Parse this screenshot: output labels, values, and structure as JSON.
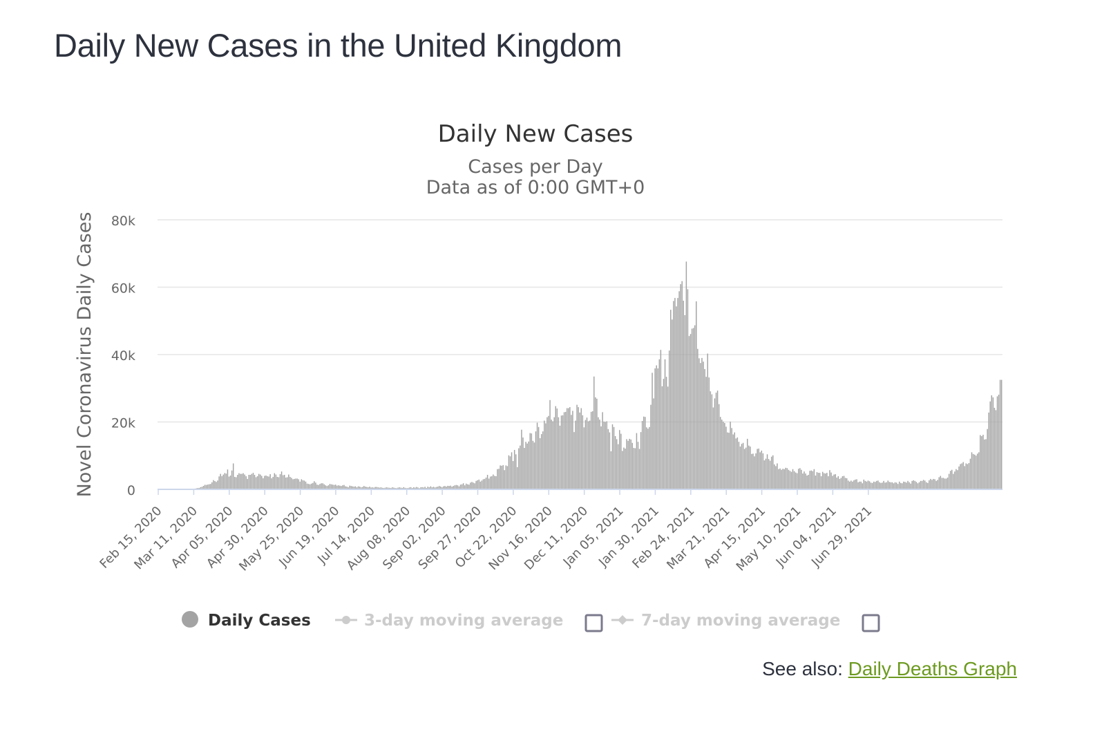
{
  "page": {
    "title": "Daily New Cases in the United Kingdom",
    "see_also_label": "See also:",
    "see_also_link": "Daily Deaths Graph"
  },
  "colors": {
    "bar": "#a3a3a3",
    "grid": "#e6e6e6",
    "axis": "#ccd6eb",
    "link": "#6c9a1f",
    "legend_inactive": "#cccccc",
    "text": "#333333"
  },
  "chart_data": {
    "type": "bar",
    "title": "Daily New Cases",
    "subtitle_lines": [
      "Cases per Day",
      "Data as of 0:00 GMT+0"
    ],
    "ylabel": "Novel Coronavirus Daily Cases",
    "xlabel": "",
    "ylim": [
      0,
      80000
    ],
    "y_ticks": [
      0,
      20000,
      40000,
      60000,
      80000
    ],
    "y_tick_labels": [
      "0",
      "20k",
      "40k",
      "60k",
      "80k"
    ],
    "x_start": "2020-02-15",
    "x_end": "2021-07-22",
    "x_tick_labels": [
      "Feb 15, 2020",
      "Mar 11, 2020",
      "Apr 05, 2020",
      "Apr 30, 2020",
      "May 25, 2020",
      "Jun 19, 2020",
      "Jul 14, 2020",
      "Aug 08, 2020",
      "Sep 02, 2020",
      "Sep 27, 2020",
      "Oct 22, 2020",
      "Nov 16, 2020",
      "Dec 11, 2020",
      "Jan 05, 2021",
      "Jan 30, 2021",
      "Feb 24, 2021",
      "Mar 21, 2021",
      "Apr 15, 2021",
      "May 10, 2021",
      "Jun 04, 2021",
      "Jun 29, 2021"
    ],
    "grid": true,
    "legend_position": "bottom-center",
    "legend": [
      {
        "label": "Daily Cases",
        "active": true,
        "symbol": "circle"
      },
      {
        "label": "3-day moving average",
        "active": false,
        "symbol": "line-circle"
      },
      {
        "label": "7-day moving average",
        "active": false,
        "symbol": "line-diamond"
      }
    ],
    "series": [
      {
        "name": "Daily Cases",
        "values": [
          1,
          0,
          0,
          0,
          0,
          0,
          0,
          3,
          4,
          0,
          1,
          5,
          10,
          13,
          35,
          22,
          46,
          43,
          53,
          40,
          140,
          60,
          70,
          78,
          100,
          150,
          230,
          308,
          410,
          420,
          650,
          760,
          1030,
          1340,
          1310,
          1420,
          1520,
          1600,
          2090,
          2740,
          2470,
          2200,
          2620,
          3840,
          4600,
          3930,
          4390,
          4840,
          4670,
          5900,
          3800,
          4100,
          5600,
          7700,
          3700,
          3600,
          4300,
          4800,
          4600,
          4600,
          4800,
          4400,
          3900,
          3100,
          4300,
          4300,
          4600,
          4900,
          4300,
          3600,
          3900,
          4600,
          4400,
          4000,
          3300,
          4000,
          4100,
          3900,
          3800,
          4500,
          3300,
          3700,
          4800,
          4400,
          3700,
          3600,
          4500,
          5300,
          4200,
          4300,
          3500,
          3600,
          4400,
          3700,
          3400,
          3000,
          3100,
          3200,
          3200,
          3000,
          2300,
          3000,
          2700,
          2600,
          2300,
          1700,
          1600,
          1500,
          1700,
          1900,
          2400,
          2000,
          1400,
          1300,
          1600,
          1800,
          1800,
          1500,
          1200,
          1000,
          1200,
          1600,
          1500,
          1400,
          1300,
          1400,
          1100,
          1200,
          1100,
          1000,
          1200,
          1300,
          900,
          800,
          600,
          1100,
          1000,
          900,
          800,
          900,
          600,
          900,
          800,
          600,
          700,
          1000,
          800,
          700,
          600,
          800,
          550,
          600,
          500,
          700,
          700,
          600,
          500,
          600,
          450,
          400,
          500,
          600,
          500,
          450,
          400,
          600,
          500,
          400,
          350,
          500,
          600,
          500,
          400,
          650,
          450,
          350,
          400,
          550,
          650,
          400,
          600,
          500,
          700,
          550,
          350,
          600,
          650,
          550,
          750,
          400,
          800,
          600,
          900,
          600,
          750,
          550,
          700,
          800,
          1000,
          850,
          600,
          900,
          1000,
          800,
          1050,
          1000,
          1100,
          800,
          1000,
          1200,
          1300,
          1200,
          900,
          1400,
          1500,
          1800,
          1200,
          1700,
          1500,
          1400,
          2000,
          2200,
          2000,
          1800,
          2500,
          2700,
          2900,
          2300,
          2600,
          3000,
          3100,
          3500,
          4300,
          3200,
          3800,
          3900,
          4400,
          4000,
          3900,
          6000,
          6100,
          7100,
          7000,
          7200,
          5700,
          7100,
          6900,
          10100,
          9800,
          11000,
          8400,
          11700,
          10400,
          6600,
          12200,
          13000,
          17700,
          15400,
          12300,
          14100,
          13600,
          14200,
          16700,
          16600,
          14400,
          13900,
          17200,
          19800,
          18500,
          15200,
          16400,
          17200,
          20400,
          19600,
          21400,
          21800,
          26500,
          20700,
          20200,
          21400,
          24700,
          24000,
          21400,
          18900,
          21900,
          22000,
          22900,
          23000,
          24100,
          24100,
          24400,
          22100,
          23300,
          17000,
          20400,
          25100,
          24400,
          22800,
          24100,
          22000,
          18400,
          20600,
          21300,
          20200,
          20400,
          23000,
          23200,
          33500,
          27300,
          26900,
          21400,
          20700,
          18700,
          22900,
          20100,
          20000,
          20200,
          17900,
          16900,
          11300,
          19300,
          18500,
          15800,
          14900,
          13400,
          17600,
          16500,
          11400,
          12400,
          12100,
          14900,
          14400,
          15000,
          14800,
          13800,
          12300,
          12200,
          16700,
          14100,
          12000,
          17000,
          20300,
          21600,
          21500,
          18400,
          18000,
          18500,
          25100,
          34600,
          27000,
          35900,
          36800,
          35900,
          38600,
          41400,
          30600,
          32800,
          38600,
          33400,
          30500,
          41200,
          53300,
          50400,
          55900,
          56800,
          54300,
          56800,
          58800,
          60900,
          61800,
          56000,
          51700,
          67600,
          59400,
          45500,
          46100,
          47700,
          47900,
          48700,
          55800,
          41700,
          38900,
          37500,
          39000,
          37900,
          35700,
          33400,
          40300,
          33200,
          29100,
          28200,
          24300,
          27000,
          28700,
          29300,
          25300,
          21500,
          20700,
          20100,
          19700,
          18600,
          16900,
          16800,
          20100,
          18200,
          16300,
          16900,
          15100,
          15400,
          14100,
          12700,
          13500,
          13800,
          12000,
          12400,
          15000,
          13000,
          12700,
          10500,
          10600,
          9800,
          10700,
          12000,
          12100,
          11000,
          11500,
          10700,
          8600,
          9100,
          10400,
          9000,
          8500,
          9700,
          10100,
          7400,
          6900,
          7700,
          6000,
          6200,
          5800,
          6100,
          6000,
          6400,
          6300,
          5800,
          5500,
          5200,
          6000,
          5400,
          5000,
          4800,
          6100,
          6300,
          5800,
          4700,
          5300,
          4700,
          4100,
          4300,
          5500,
          5600,
          5400,
          6000,
          4100,
          5100,
          4900,
          4900,
          3900,
          5200,
          4800,
          4700,
          4900,
          3900,
          5700,
          5000,
          4000,
          4400,
          4500,
          3500,
          3900,
          3100,
          3400,
          3900,
          4000,
          3400,
          3300,
          2600,
          2300,
          2600,
          2300,
          2700,
          2900,
          3000,
          2100,
          2300,
          2300,
          1800,
          2900,
          2500,
          2300,
          2600,
          2400,
          2000,
          1900,
          2300,
          2200,
          2500,
          2600,
          2100,
          1900,
          2000,
          2500,
          2000,
          2100,
          2600,
          2200,
          2100,
          2100,
          1800,
          2100,
          2000,
          1600,
          2300,
          1900,
          1800,
          2300,
          2200,
          2000,
          2500,
          2100,
          1700,
          2500,
          2700,
          2500,
          2200,
          1800,
          2100,
          2500,
          2500,
          2800,
          2600,
          2100,
          1900,
          2700,
          3100,
          2800,
          3100,
          3000,
          2500,
          2800,
          3600,
          4000,
          3400,
          3400,
          3200,
          3200,
          3500,
          4600,
          5500,
          5800,
          4600,
          5300,
          6000,
          5700,
          6800,
          7500,
          7700,
          8100,
          6900,
          7700,
          7500,
          7800,
          9100,
          11000,
          10500,
          10300,
          10000,
          10600,
          11000,
          16100,
          15800,
          16200,
          14800,
          14900,
          17900,
          22800,
          26100,
          27900,
          27300,
          24200,
          23500,
          27600,
          28100,
          32500,
          32500
        ]
      }
    ]
  }
}
